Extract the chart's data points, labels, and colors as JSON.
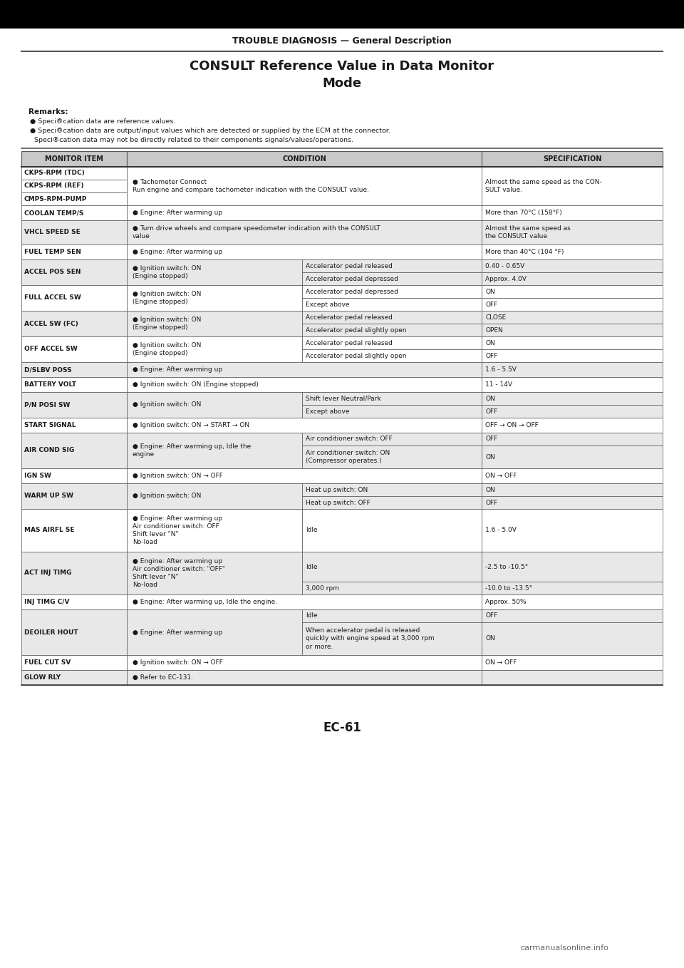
{
  "page_title": "TROUBLE DIAGNOSIS — General Description",
  "section_title": "CONSULT Reference Value in Data Monitor\nMode",
  "remarks_title": "Remarks:",
  "remarks": [
    "Speci®cation data are reference values.",
    "Speci®cation data are output/input values which are detected or supplied by the ECM at the connector.",
    "  Speci®cation data may not be directly related to their components signals/values/operations."
  ],
  "col_headers": [
    "MONITOR ITEM",
    "CONDITION",
    "SPECIFICATION"
  ],
  "bg_color": "#ffffff",
  "header_bg": "#c8c8c8",
  "row_bg_alt": "#e8e8e8",
  "row_bg_norm": "#ffffff",
  "border_color": "#555555",
  "text_color": "#1a1a1a",
  "page_bottom": "EC-61",
  "watermark": "carmanualsonline.info",
  "top_bar_color": "#000000",
  "page_title_color": "#1a1a1a",
  "rows": [
    {
      "monitor": "CKPS-RPM (TDC)",
      "condition_main": "Tachometer Connect\nRun engine and compare tachometer indication with the CONSULT value.",
      "condition_sub": [],
      "spec_main": "Almost the same speed as the CON-\nSULT value.",
      "spec_sub": [],
      "sub_rows": 0,
      "merged_with_next": 2
    },
    {
      "monitor": "CKPS-RPM (REF)",
      "condition_main": "",
      "condition_sub": [],
      "spec_main": "",
      "spec_sub": [],
      "sub_rows": 0,
      "merged_with_next": 0
    },
    {
      "monitor": "CMPS-RPM-PUMP",
      "condition_main": "",
      "condition_sub": [],
      "spec_main": "",
      "spec_sub": [],
      "sub_rows": 0,
      "merged_with_next": 0
    },
    {
      "monitor": "COOLAN TEMP/S",
      "condition_main": "Engine: After warming up",
      "condition_sub": [],
      "spec_main": "More than 70°C (158°F)",
      "spec_sub": [],
      "sub_rows": 0,
      "merged_with_next": 0
    },
    {
      "monitor": "VHCL SPEED SE",
      "condition_main": "Turn drive wheels and compare speedometer indication with the CONSULT\nvalue",
      "condition_sub": [],
      "spec_main": "Almost the same speed as\nthe CONSULT value",
      "spec_sub": [],
      "sub_rows": 0,
      "merged_with_next": 0
    },
    {
      "monitor": "FUEL TEMP SEN",
      "condition_main": "Engine: After warming up",
      "condition_sub": [],
      "spec_main": "More than 40°C (104 °F)",
      "spec_sub": [],
      "sub_rows": 0,
      "merged_with_next": 0
    },
    {
      "monitor": "ACCEL POS SEN",
      "condition_main": "Ignition switch: ON\n(Engine stopped)",
      "condition_sub": [
        "Accelerator pedal released",
        "Accelerator pedal depressed"
      ],
      "spec_main": "",
      "spec_sub": [
        "0.40 - 0.65V",
        "Approx. 4.0V"
      ],
      "sub_rows": 2,
      "merged_with_next": 0
    },
    {
      "monitor": "FULL ACCEL SW",
      "condition_main": "Ignition switch: ON\n(Engine stopped)",
      "condition_sub": [
        "Accelerator pedal depressed",
        "Except above"
      ],
      "spec_main": "",
      "spec_sub": [
        "ON",
        "OFF"
      ],
      "sub_rows": 2,
      "merged_with_next": 0
    },
    {
      "monitor": "ACCEL SW (FC)",
      "condition_main": "Ignition switch: ON\n(Engine stopped)",
      "condition_sub": [
        "Accelerator pedal released",
        "Accelerator pedal slightly open"
      ],
      "spec_main": "",
      "spec_sub": [
        "CLOSE",
        "OPEN"
      ],
      "sub_rows": 2,
      "merged_with_next": 0
    },
    {
      "monitor": "OFF ACCEL SW",
      "condition_main": "Ignition switch: ON\n(Engine stopped)",
      "condition_sub": [
        "Accelerator pedal released",
        "Accelerator pedal slightly open"
      ],
      "spec_main": "",
      "spec_sub": [
        "ON",
        "OFF"
      ],
      "sub_rows": 2,
      "merged_with_next": 0
    },
    {
      "monitor": "D/SLBV POSS",
      "condition_main": "Engine: After warming up",
      "condition_sub": [],
      "spec_main": "1.6 - 5.5V",
      "spec_sub": [],
      "sub_rows": 0,
      "merged_with_next": 0
    },
    {
      "monitor": "BATTERY VOLT",
      "condition_main": "Ignition switch: ON (Engine stopped)",
      "condition_sub": [],
      "spec_main": "11 - 14V",
      "spec_sub": [],
      "sub_rows": 0,
      "merged_with_next": 0
    },
    {
      "monitor": "P/N POSI SW",
      "condition_main": "Ignition switch: ON",
      "condition_sub": [
        "Shift lever Neutral/Park",
        "Except above"
      ],
      "spec_main": "",
      "spec_sub": [
        "ON",
        "OFF"
      ],
      "sub_rows": 2,
      "merged_with_next": 0
    },
    {
      "monitor": "START SIGNAL",
      "condition_main": "Ignition switch: ON → START → ON",
      "condition_sub": [],
      "spec_main": "OFF → ON → OFF",
      "spec_sub": [],
      "sub_rows": 0,
      "merged_with_next": 0
    },
    {
      "monitor": "AIR COND SIG",
      "condition_main": "Engine: After warming up, Idle the\nengine",
      "condition_sub": [
        "Air conditioner switch: OFF",
        "Air conditioner switch: ON\n(Compressor operates.)"
      ],
      "spec_main": "",
      "spec_sub": [
        "OFF",
        "ON"
      ],
      "sub_rows": 2,
      "merged_with_next": 0
    },
    {
      "monitor": "IGN SW",
      "condition_main": "Ignition switch: ON → OFF",
      "condition_sub": [],
      "spec_main": "ON → OFF",
      "spec_sub": [],
      "sub_rows": 0,
      "merged_with_next": 0
    },
    {
      "monitor": "WARM UP SW",
      "condition_main": "Ignition switch: ON",
      "condition_sub": [
        "Heat up switch: ON",
        "Heat up switch: OFF"
      ],
      "spec_main": "",
      "spec_sub": [
        "ON",
        "OFF"
      ],
      "sub_rows": 2,
      "merged_with_next": 0
    },
    {
      "monitor": "MAS AIRFL SE",
      "condition_main": "Engine: After warming up\nAir conditioner switch: OFF\nShift lever \"N\"\nNo-load",
      "condition_sub": [
        "Idle"
      ],
      "spec_main": "",
      "spec_sub": [
        "1.6 - 5.0V"
      ],
      "sub_rows": 1,
      "merged_with_next": 0
    },
    {
      "monitor": "ACT INJ TIMG",
      "condition_main": "Engine: After warming up\nAir conditioner switch: \"OFF\"\nShift lever \"N\"\nNo-load",
      "condition_sub": [
        "Idle",
        "3,000 rpm"
      ],
      "spec_main": "",
      "spec_sub": [
        "-2.5 to -10.5°",
        "-10.0 to -13.5°"
      ],
      "sub_rows": 2,
      "merged_with_next": 0
    },
    {
      "monitor": "INJ TIMG C/V",
      "condition_main": "Engine: After warming up, Idle the engine.",
      "condition_sub": [],
      "spec_main": "Approx. 50%",
      "spec_sub": [],
      "sub_rows": 0,
      "merged_with_next": 0
    },
    {
      "monitor": "DEOILER HOUT",
      "condition_main": "Engine: After warming up",
      "condition_sub": [
        "Idle",
        "When accelerator pedal is released\nquickly with engine speed at 3,000 rpm\nor more."
      ],
      "spec_main": "",
      "spec_sub": [
        "OFF",
        "ON"
      ],
      "sub_rows": 2,
      "merged_with_next": 0
    },
    {
      "monitor": "FUEL CUT SV",
      "condition_main": "Ignition switch: ON → OFF",
      "condition_sub": [],
      "spec_main": "ON → OFF",
      "spec_sub": [],
      "sub_rows": 0,
      "merged_with_next": 0
    },
    {
      "monitor": "GLOW RLY",
      "condition_main": "Refer to EC-131.",
      "condition_sub": [],
      "spec_main": "",
      "spec_sub": [],
      "sub_rows": 0,
      "merged_with_next": 0
    }
  ]
}
